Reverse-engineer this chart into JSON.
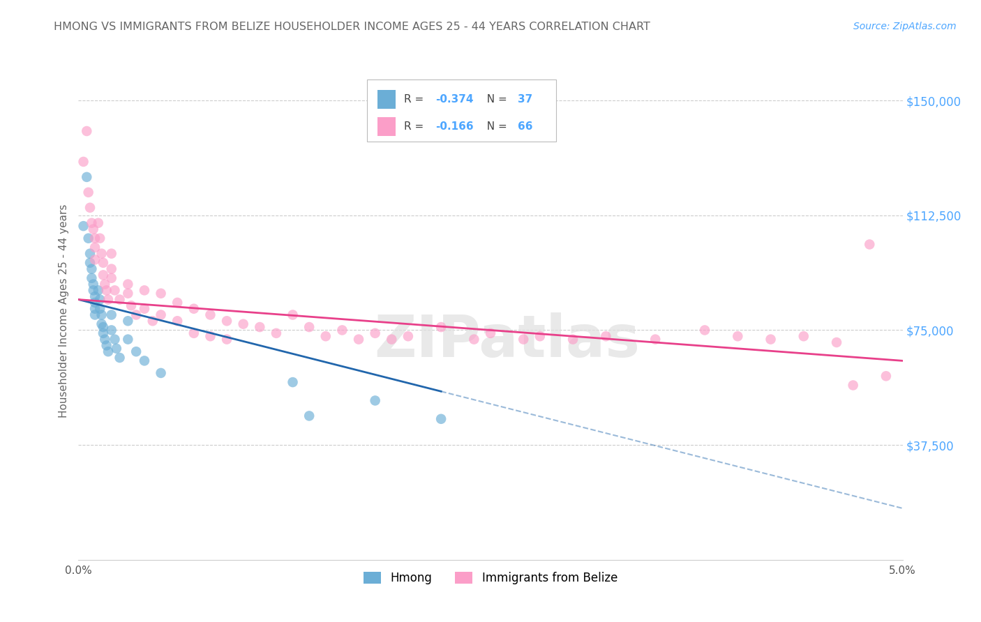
{
  "title": "HMONG VS IMMIGRANTS FROM BELIZE HOUSEHOLDER INCOME AGES 25 - 44 YEARS CORRELATION CHART",
  "source": "Source: ZipAtlas.com",
  "ylabel": "Householder Income Ages 25 - 44 years",
  "xlim": [
    0.0,
    0.05
  ],
  "ylim": [
    0,
    162500
  ],
  "yticks": [
    37500,
    75000,
    112500,
    150000
  ],
  "ytick_labels": [
    "$37,500",
    "$75,000",
    "$112,500",
    "$150,000"
  ],
  "xticks": [
    0.0,
    0.01,
    0.02,
    0.03,
    0.04,
    0.05
  ],
  "xtick_labels": [
    "0.0%",
    "",
    "",
    "",
    "",
    "5.0%"
  ],
  "legend_label1": "Hmong",
  "legend_label2": "Immigrants from Belize",
  "r1": "-0.374",
  "n1": "37",
  "r2": "-0.166",
  "n2": "66",
  "color1": "#6baed6",
  "color2": "#fb9ec8",
  "line_color1": "#2166ac",
  "line_color2": "#e8408a",
  "background_color": "#ffffff",
  "grid_color": "#cccccc",
  "title_color": "#666666",
  "axis_label_color": "#666666",
  "tick_color_right": "#4da6ff",
  "watermark": "ZIPatlas",
  "hmong_x": [
    0.0003,
    0.0005,
    0.0006,
    0.0007,
    0.0007,
    0.0008,
    0.0008,
    0.0009,
    0.0009,
    0.001,
    0.001,
    0.001,
    0.001,
    0.0012,
    0.0013,
    0.0013,
    0.0014,
    0.0014,
    0.0015,
    0.0015,
    0.0016,
    0.0017,
    0.0018,
    0.002,
    0.002,
    0.0022,
    0.0023,
    0.0025,
    0.003,
    0.003,
    0.0035,
    0.004,
    0.005,
    0.013,
    0.014,
    0.018,
    0.022
  ],
  "hmong_y": [
    109000,
    125000,
    105000,
    100000,
    97000,
    95000,
    92000,
    90000,
    88000,
    86000,
    84000,
    82000,
    80000,
    88000,
    85000,
    82000,
    80000,
    77000,
    76000,
    74000,
    72000,
    70000,
    68000,
    80000,
    75000,
    72000,
    69000,
    66000,
    78000,
    72000,
    68000,
    65000,
    61000,
    58000,
    47000,
    52000,
    46000
  ],
  "belize_x": [
    0.0003,
    0.0005,
    0.0006,
    0.0007,
    0.0008,
    0.0009,
    0.001,
    0.001,
    0.001,
    0.0012,
    0.0013,
    0.0014,
    0.0015,
    0.0015,
    0.0016,
    0.0017,
    0.0018,
    0.002,
    0.002,
    0.002,
    0.0022,
    0.0025,
    0.003,
    0.003,
    0.0032,
    0.0035,
    0.004,
    0.004,
    0.0045,
    0.005,
    0.005,
    0.006,
    0.006,
    0.007,
    0.007,
    0.008,
    0.008,
    0.009,
    0.009,
    0.01,
    0.011,
    0.012,
    0.013,
    0.014,
    0.015,
    0.016,
    0.017,
    0.018,
    0.019,
    0.02,
    0.022,
    0.024,
    0.025,
    0.027,
    0.028,
    0.03,
    0.032,
    0.035,
    0.038,
    0.04,
    0.042,
    0.044,
    0.046,
    0.047,
    0.048,
    0.049
  ],
  "belize_y": [
    130000,
    140000,
    120000,
    115000,
    110000,
    108000,
    105000,
    102000,
    98000,
    110000,
    105000,
    100000,
    97000,
    93000,
    90000,
    88000,
    85000,
    100000,
    95000,
    92000,
    88000,
    85000,
    90000,
    87000,
    83000,
    80000,
    88000,
    82000,
    78000,
    87000,
    80000,
    84000,
    78000,
    82000,
    74000,
    80000,
    73000,
    78000,
    72000,
    77000,
    76000,
    74000,
    80000,
    76000,
    73000,
    75000,
    72000,
    74000,
    72000,
    73000,
    76000,
    72000,
    74000,
    72000,
    73000,
    72000,
    73000,
    72000,
    75000,
    73000,
    72000,
    73000,
    71000,
    57000,
    103000,
    60000
  ]
}
